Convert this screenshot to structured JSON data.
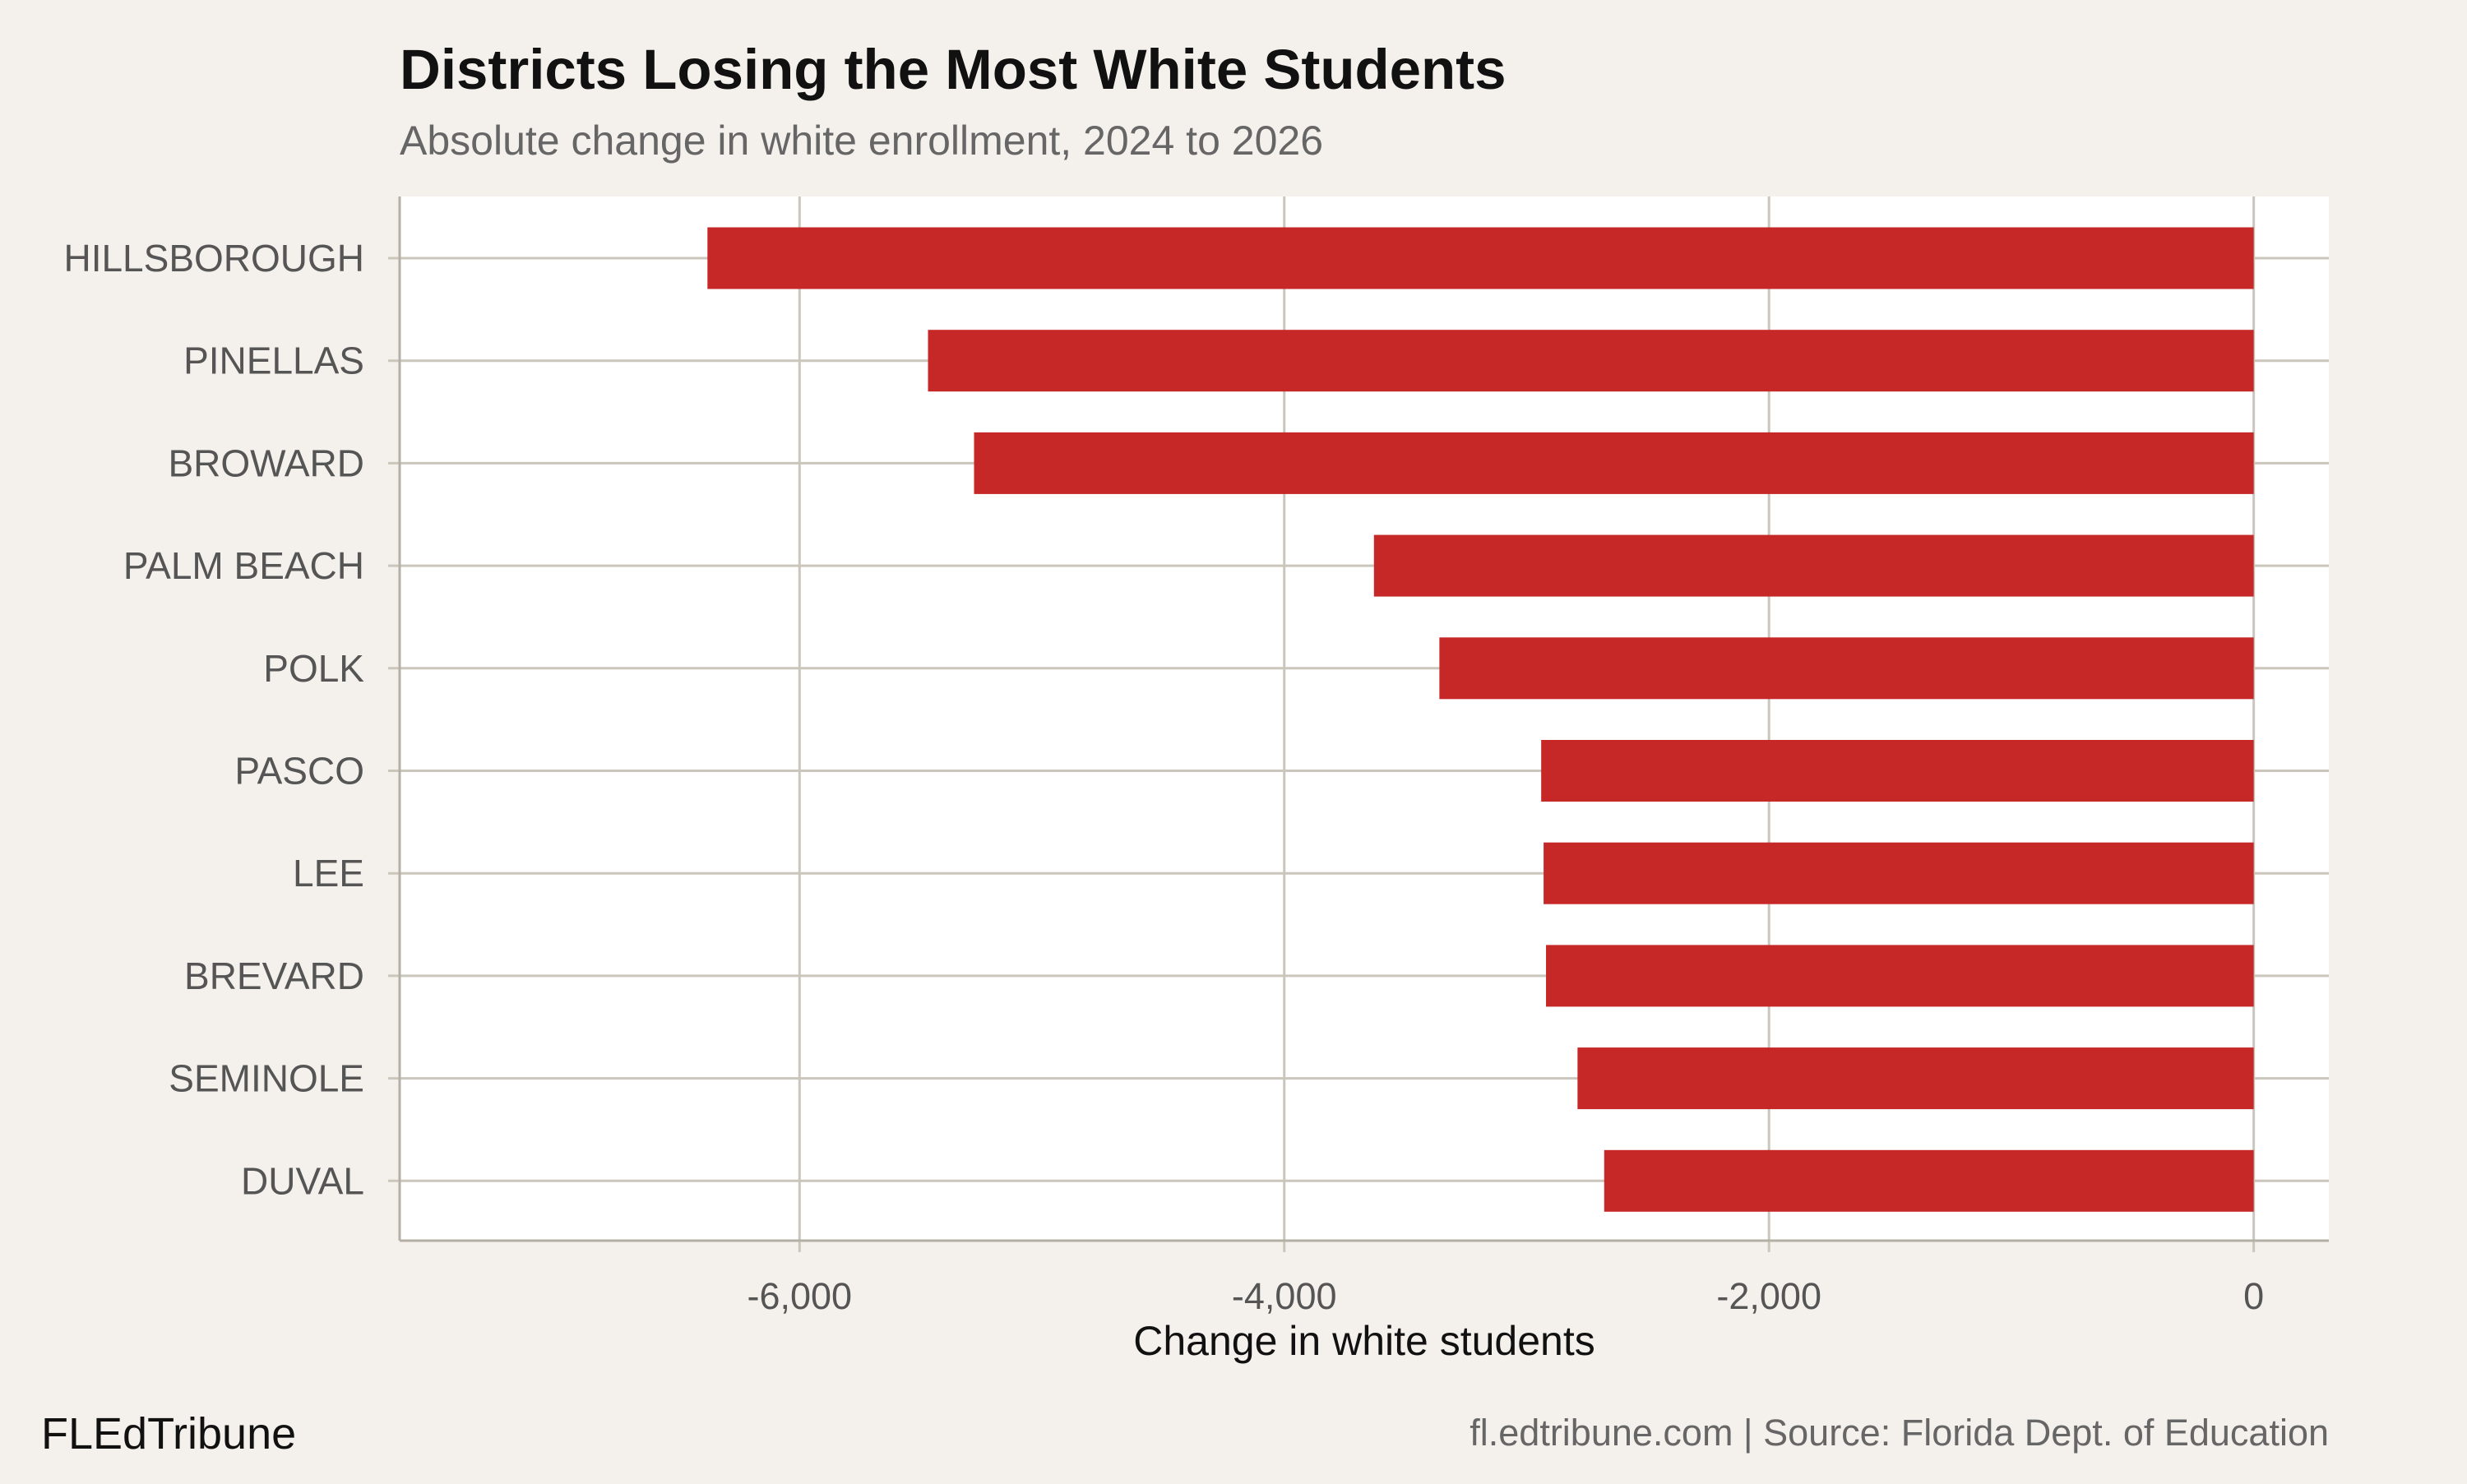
{
  "chart_data": {
    "type": "bar",
    "orientation": "horizontal",
    "title": "Districts Losing the Most White Students",
    "subtitle": "Absolute change in white enrollment, 2024 to 2026",
    "xlabel": "Change in white students",
    "ylabel": "",
    "categories": [
      "HILLSBOROUGH",
      "PINELLAS",
      "BROWARD",
      "PALM BEACH",
      "POLK",
      "PASCO",
      "LEE",
      "BREVARD",
      "SEMINOLE",
      "DUVAL"
    ],
    "values": [
      -6380,
      -5470,
      -5280,
      -3630,
      -3360,
      -2940,
      -2930,
      -2920,
      -2790,
      -2680
    ],
    "xlim": [
      -7650,
      310
    ],
    "xticks": [
      -6000,
      -4000,
      -2000,
      0
    ],
    "xtick_labels": [
      "-6,000",
      "-4,000",
      "-2,000",
      "0"
    ],
    "grid": true,
    "bar_color": "#c62828",
    "background": "#f4f1ec",
    "panel_color": "#ffffff",
    "grid_color": "#cbc6bc"
  },
  "footer": {
    "brand": "FLEdTribune",
    "source": "fl.edtribune.com | Source: Florida Dept. of Education"
  }
}
